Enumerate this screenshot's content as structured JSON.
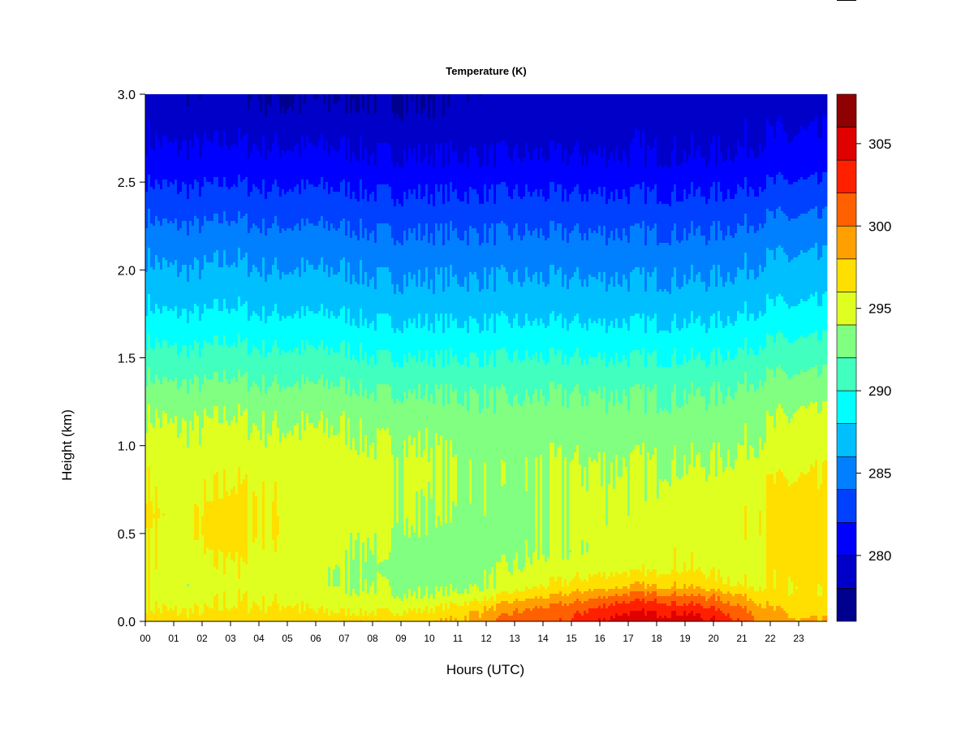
{
  "chart_data": {
    "type": "heatmap",
    "title": "Temperature (K)",
    "xlabel": "Hours (UTC)",
    "ylabel": "Height (km)",
    "x_unit": "hour (UTC)",
    "xlim": [
      0,
      24
    ],
    "ylim": [
      0,
      3.0
    ],
    "x_tick_labels": [
      "00",
      "01",
      "02",
      "03",
      "04",
      "05",
      "06",
      "07",
      "08",
      "09",
      "10",
      "11",
      "12",
      "13",
      "14",
      "15",
      "16",
      "17",
      "18",
      "19",
      "20",
      "21",
      "22",
      "23"
    ],
    "y_ticks": [
      0.0,
      0.5,
      1.0,
      1.5,
      2.0,
      2.5,
      3.0
    ],
    "y_tick_labels": [
      "0.0",
      "0.5",
      "1.0",
      "1.5",
      "2.0",
      "2.5",
      "3.0"
    ],
    "colorbar": {
      "label": "",
      "range": [
        276,
        308
      ],
      "levels": [
        276,
        278,
        280,
        282,
        284,
        286,
        288,
        290,
        292,
        294,
        296,
        298,
        300,
        302,
        304,
        306,
        308
      ],
      "colors": [
        "#00008f",
        "#0000c8",
        "#0000ff",
        "#0040ff",
        "#0080ff",
        "#00bfff",
        "#00ffff",
        "#40ffbf",
        "#80ff80",
        "#dfff20",
        "#ffdf00",
        "#ffa000",
        "#ff6000",
        "#ff2000",
        "#df0000",
        "#8f0000"
      ],
      "ticks": [
        280,
        285,
        290,
        295,
        300,
        305
      ],
      "tick_labels": [
        "280",
        "285",
        "290",
        "295",
        "300",
        "305"
      ]
    },
    "x_hours": [
      0,
      1,
      2,
      3,
      4,
      5,
      6,
      7,
      8,
      9,
      10,
      11,
      12,
      13,
      14,
      15,
      16,
      17,
      18,
      19,
      20,
      21,
      22,
      23,
      24
    ],
    "y_heights": [
      0,
      0.05,
      0.1,
      0.15,
      0.2,
      0.3,
      0.4,
      0.5,
      0.6,
      0.7,
      0.8,
      0.9,
      1.0,
      1.1,
      1.2,
      1.3,
      1.4,
      1.5,
      1.6,
      1.7,
      1.8,
      1.9,
      2.0,
      2.1,
      2.2,
      2.3,
      2.4,
      2.5,
      2.6,
      2.7,
      2.8,
      2.9,
      3.0
    ],
    "temperature_K": [
      [
        297.5,
        297.0,
        297.0,
        297.0,
        297.0,
        297.0,
        297.0,
        297.5,
        297.5,
        297.5,
        297.5,
        298.0,
        299.0,
        301.0,
        301.0,
        302.0,
        304.0,
        305.5,
        305.0,
        305.0,
        304.0,
        302.0,
        299.0,
        298.0,
        298.0
      ],
      [
        296.5,
        296.0,
        296.0,
        296.5,
        296.5,
        296.5,
        296.0,
        296.0,
        296.0,
        296.0,
        296.5,
        297.5,
        298.5,
        300.0,
        301.0,
        301.5,
        303.0,
        304.0,
        304.0,
        304.0,
        303.0,
        301.0,
        298.5,
        297.5,
        297.0
      ],
      [
        296.0,
        295.5,
        295.5,
        296.0,
        296.0,
        296.0,
        295.5,
        295.0,
        295.0,
        295.0,
        295.0,
        296.0,
        297.0,
        298.5,
        299.5,
        300.0,
        301.5,
        302.5,
        302.5,
        302.0,
        301.0,
        299.5,
        297.5,
        296.5,
        296.5
      ],
      [
        296.0,
        295.0,
        295.0,
        296.0,
        295.5,
        295.5,
        295.0,
        294.5,
        294.5,
        294.0,
        294.0,
        294.5,
        295.0,
        296.5,
        297.5,
        298.5,
        299.5,
        300.5,
        300.5,
        300.0,
        299.5,
        298.0,
        296.5,
        296.0,
        296.0
      ],
      [
        296.0,
        294.5,
        294.5,
        295.5,
        295.0,
        295.0,
        294.5,
        294.0,
        294.0,
        293.5,
        293.5,
        293.5,
        294.0,
        295.0,
        296.0,
        296.5,
        297.0,
        298.0,
        298.0,
        298.0,
        297.0,
        296.0,
        296.0,
        296.0,
        296.0
      ],
      [
        296.5,
        294.5,
        295.0,
        296.0,
        295.0,
        295.0,
        294.5,
        294.0,
        293.5,
        293.0,
        293.0,
        293.0,
        293.5,
        294.0,
        294.5,
        295.0,
        295.5,
        295.5,
        295.5,
        296.0,
        295.5,
        295.0,
        296.0,
        296.5,
        296.5
      ],
      [
        296.5,
        294.5,
        295.5,
        296.5,
        295.5,
        295.5,
        294.5,
        294.5,
        294.0,
        293.5,
        293.0,
        292.5,
        293.0,
        293.5,
        294.0,
        294.0,
        294.5,
        295.0,
        295.5,
        295.5,
        295.0,
        295.0,
        296.0,
        296.5,
        296.5
      ],
      [
        296.5,
        294.5,
        296.0,
        297.0,
        296.0,
        296.0,
        295.0,
        294.5,
        294.5,
        294.0,
        293.5,
        293.0,
        293.0,
        293.0,
        294.0,
        294.5,
        294.5,
        295.0,
        295.0,
        295.5,
        295.0,
        295.5,
        296.5,
        296.5,
        296.5
      ],
      [
        297.0,
        295.0,
        296.0,
        297.0,
        296.0,
        296.0,
        295.0,
        295.0,
        294.5,
        294.5,
        294.0,
        293.5,
        293.5,
        293.0,
        294.0,
        294.5,
        294.5,
        294.5,
        295.0,
        295.5,
        295.0,
        295.5,
        296.5,
        296.5,
        296.5
      ],
      [
        296.5,
        295.0,
        295.5,
        296.5,
        296.0,
        295.5,
        295.0,
        295.0,
        294.5,
        294.5,
        294.0,
        294.0,
        293.5,
        293.0,
        294.0,
        294.5,
        294.5,
        294.5,
        294.5,
        295.0,
        295.0,
        295.0,
        296.5,
        296.5,
        296.0
      ],
      [
        296.0,
        295.0,
        295.5,
        296.0,
        295.5,
        295.5,
        295.0,
        295.0,
        294.5,
        294.5,
        294.5,
        294.0,
        293.5,
        293.5,
        294.0,
        294.5,
        294.0,
        294.5,
        294.5,
        294.5,
        294.5,
        295.0,
        296.0,
        296.0,
        296.0
      ],
      [
        295.5,
        294.5,
        295.0,
        295.5,
        295.0,
        295.0,
        295.0,
        295.0,
        294.5,
        294.5,
        294.5,
        294.0,
        293.5,
        293.5,
        294.0,
        294.0,
        294.0,
        294.0,
        294.0,
        294.0,
        294.0,
        294.5,
        295.0,
        295.5,
        295.5
      ],
      [
        295.0,
        294.5,
        294.5,
        295.0,
        294.5,
        294.5,
        294.5,
        294.5,
        294.0,
        294.0,
        294.0,
        293.5,
        293.0,
        293.0,
        293.5,
        293.5,
        293.5,
        293.5,
        293.5,
        293.5,
        293.5,
        294.0,
        294.5,
        295.0,
        295.0
      ],
      [
        294.5,
        294.0,
        294.0,
        294.5,
        294.0,
        294.0,
        294.0,
        294.0,
        293.5,
        293.5,
        293.5,
        293.0,
        293.0,
        293.0,
        293.0,
        293.0,
        293.0,
        293.0,
        293.0,
        293.0,
        293.0,
        293.5,
        294.0,
        294.5,
        294.5
      ],
      [
        294.0,
        293.5,
        293.5,
        294.0,
        293.5,
        293.5,
        293.5,
        293.5,
        293.0,
        293.0,
        293.0,
        292.5,
        292.5,
        292.5,
        292.5,
        292.5,
        292.5,
        292.5,
        292.5,
        292.5,
        292.5,
        293.0,
        293.5,
        294.0,
        294.0
      ],
      [
        293.0,
        292.5,
        292.5,
        293.0,
        292.5,
        292.5,
        292.5,
        292.5,
        292.0,
        292.0,
        292.0,
        292.0,
        292.0,
        291.5,
        292.0,
        292.0,
        292.0,
        292.0,
        292.0,
        292.0,
        292.0,
        292.5,
        293.0,
        293.0,
        293.0
      ],
      [
        292.0,
        291.5,
        291.5,
        292.0,
        291.5,
        291.5,
        291.5,
        291.5,
        291.0,
        291.0,
        291.0,
        291.0,
        291.0,
        291.0,
        291.0,
        291.0,
        291.0,
        291.0,
        291.0,
        291.0,
        291.0,
        291.5,
        292.0,
        292.0,
        292.0
      ],
      [
        291.0,
        290.5,
        290.5,
        291.0,
        290.5,
        290.5,
        290.5,
        290.5,
        290.0,
        290.0,
        290.0,
        290.0,
        290.0,
        290.0,
        290.0,
        290.0,
        290.0,
        290.0,
        290.0,
        290.0,
        290.0,
        290.5,
        291.0,
        291.0,
        291.0
      ],
      [
        290.0,
        289.5,
        289.5,
        290.0,
        289.5,
        289.5,
        289.5,
        289.5,
        289.0,
        289.0,
        289.0,
        289.0,
        289.0,
        289.0,
        289.0,
        289.0,
        289.0,
        289.0,
        289.0,
        289.0,
        289.0,
        289.5,
        290.0,
        290.0,
        290.0
      ],
      [
        289.0,
        288.5,
        288.5,
        289.0,
        288.5,
        288.5,
        288.5,
        288.5,
        288.0,
        288.0,
        288.0,
        288.0,
        288.0,
        288.0,
        288.0,
        288.0,
        288.0,
        288.0,
        288.0,
        288.0,
        288.0,
        288.5,
        289.0,
        289.0,
        289.0
      ],
      [
        288.0,
        287.5,
        287.5,
        288.0,
        287.5,
        287.5,
        287.5,
        287.5,
        287.0,
        287.0,
        287.0,
        287.0,
        287.0,
        287.0,
        287.0,
        287.0,
        287.0,
        287.0,
        287.0,
        287.0,
        287.0,
        287.5,
        288.0,
        288.0,
        288.0
      ],
      [
        287.2,
        286.8,
        286.8,
        287.2,
        286.8,
        286.8,
        286.8,
        286.8,
        286.4,
        286.4,
        286.4,
        286.4,
        286.4,
        286.4,
        286.4,
        286.4,
        286.4,
        286.4,
        286.4,
        286.4,
        286.4,
        286.8,
        287.2,
        287.2,
        287.2
      ],
      [
        286.5,
        286.0,
        286.0,
        286.5,
        286.0,
        286.0,
        286.0,
        286.0,
        285.6,
        285.6,
        285.6,
        285.6,
        285.6,
        285.6,
        285.6,
        285.6,
        285.6,
        285.6,
        285.6,
        285.6,
        285.6,
        286.0,
        286.5,
        286.5,
        286.5
      ],
      [
        285.8,
        285.3,
        285.3,
        285.8,
        285.3,
        285.3,
        285.3,
        285.3,
        284.9,
        284.9,
        284.9,
        284.9,
        284.9,
        284.9,
        284.9,
        284.9,
        284.9,
        284.9,
        284.9,
        284.9,
        284.9,
        285.3,
        285.8,
        285.8,
        285.8
      ],
      [
        285.0,
        284.5,
        284.5,
        285.0,
        284.5,
        284.5,
        284.5,
        284.5,
        284.1,
        284.1,
        284.1,
        284.1,
        284.1,
        284.1,
        284.1,
        284.1,
        284.1,
        284.1,
        284.1,
        284.1,
        284.1,
        284.5,
        285.0,
        285.0,
        285.0
      ],
      [
        284.0,
        283.5,
        283.5,
        284.0,
        283.5,
        283.5,
        283.5,
        283.5,
        283.2,
        283.2,
        283.2,
        283.2,
        283.2,
        283.2,
        283.2,
        283.2,
        283.2,
        283.2,
        283.2,
        283.2,
        283.2,
        283.5,
        284.0,
        284.0,
        284.0
      ],
      [
        283.0,
        282.6,
        282.6,
        283.0,
        282.6,
        282.6,
        282.6,
        282.6,
        282.3,
        282.3,
        282.3,
        282.3,
        282.3,
        282.3,
        282.3,
        282.3,
        282.3,
        282.3,
        282.3,
        282.3,
        282.3,
        282.6,
        283.0,
        283.0,
        283.0
      ],
      [
        282.0,
        281.7,
        281.7,
        282.0,
        281.7,
        281.7,
        281.7,
        281.7,
        281.4,
        281.4,
        281.4,
        281.4,
        281.4,
        281.4,
        281.4,
        281.4,
        281.4,
        281.4,
        281.4,
        281.4,
        281.4,
        281.7,
        282.0,
        282.0,
        282.0
      ],
      [
        281.0,
        280.7,
        280.7,
        281.0,
        280.7,
        280.7,
        280.7,
        280.7,
        280.4,
        280.4,
        280.4,
        280.4,
        280.4,
        280.4,
        280.4,
        280.4,
        280.4,
        280.4,
        280.4,
        280.4,
        280.4,
        280.7,
        281.0,
        281.0,
        281.0
      ],
      [
        280.3,
        280.0,
        280.0,
        280.3,
        280.0,
        280.0,
        280.0,
        280.0,
        279.7,
        279.7,
        279.7,
        279.7,
        279.7,
        279.7,
        279.7,
        279.7,
        279.7,
        279.7,
        279.7,
        279.7,
        279.7,
        280.0,
        280.3,
        280.3,
        280.3
      ],
      [
        279.8,
        279.3,
        279.3,
        279.6,
        279.3,
        279.3,
        279.3,
        279.3,
        279.0,
        279.0,
        279.0,
        279.0,
        279.0,
        279.0,
        279.0,
        279.0,
        279.3,
        279.6,
        279.3,
        279.3,
        279.3,
        279.6,
        279.8,
        279.8,
        279.8
      ],
      [
        279.3,
        278.6,
        278.6,
        278.9,
        278.4,
        278.2,
        278.2,
        278.4,
        278.4,
        278.2,
        278.2,
        278.6,
        278.9,
        278.9,
        279.0,
        279.0,
        279.0,
        279.0,
        279.0,
        279.0,
        279.0,
        279.3,
        279.3,
        279.3,
        279.3
      ],
      [
        279.0,
        278.4,
        278.4,
        278.6,
        278.0,
        277.9,
        277.9,
        278.0,
        278.0,
        277.9,
        277.9,
        278.3,
        278.6,
        278.6,
        278.8,
        278.8,
        278.8,
        278.8,
        278.8,
        278.8,
        278.8,
        279.0,
        279.0,
        279.0,
        279.0
      ]
    ]
  }
}
